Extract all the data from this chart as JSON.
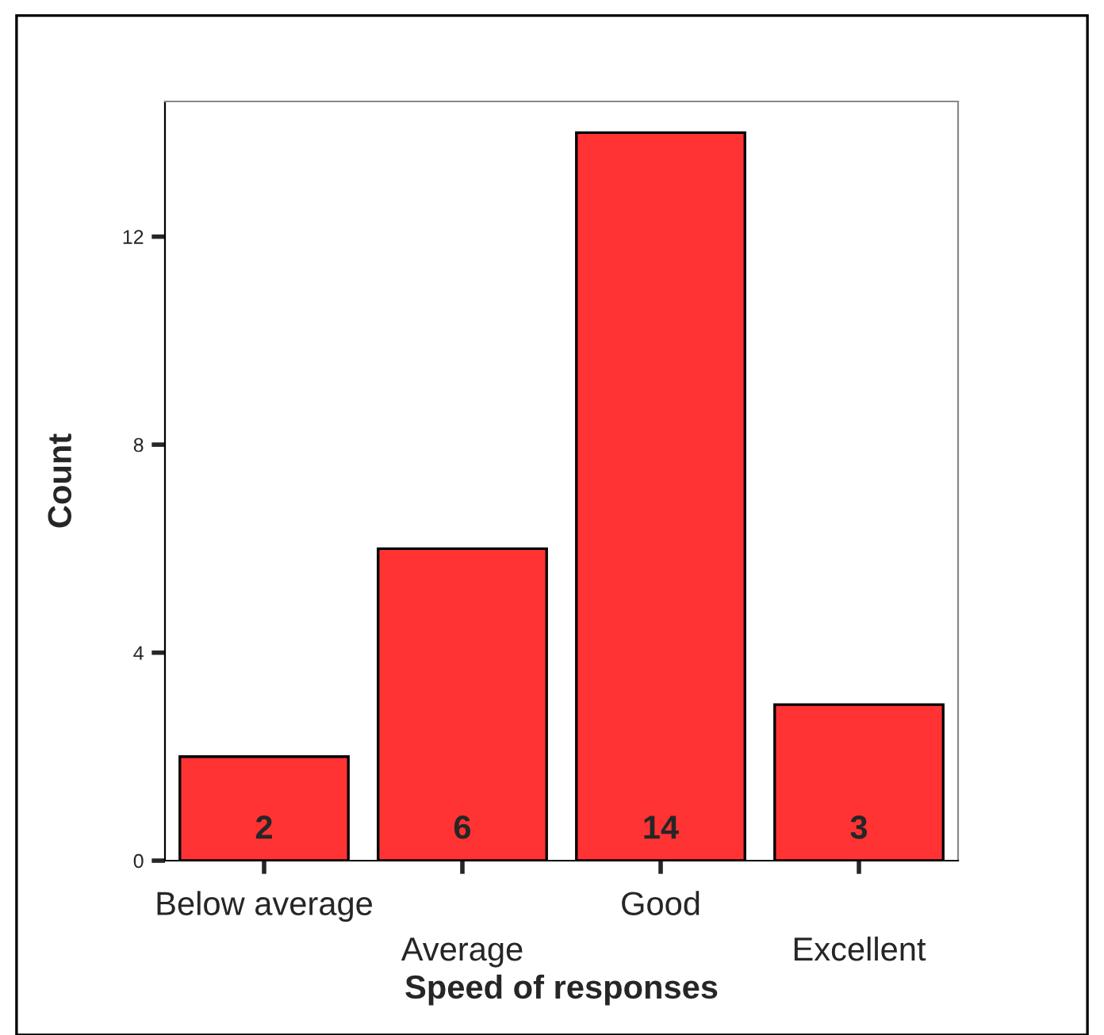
{
  "chart_data": {
    "type": "bar",
    "xlabel": "Speed of responses",
    "ylabel": "Count",
    "categories": [
      "Below average",
      "Average",
      "Good",
      "Excellent"
    ],
    "values": [
      2,
      6,
      14,
      3
    ],
    "color": "#ff3333",
    "ylim": [
      0,
      14.6
    ],
    "yticks": [
      0,
      4,
      8,
      12
    ],
    "grid": false,
    "data_labels": true
  }
}
